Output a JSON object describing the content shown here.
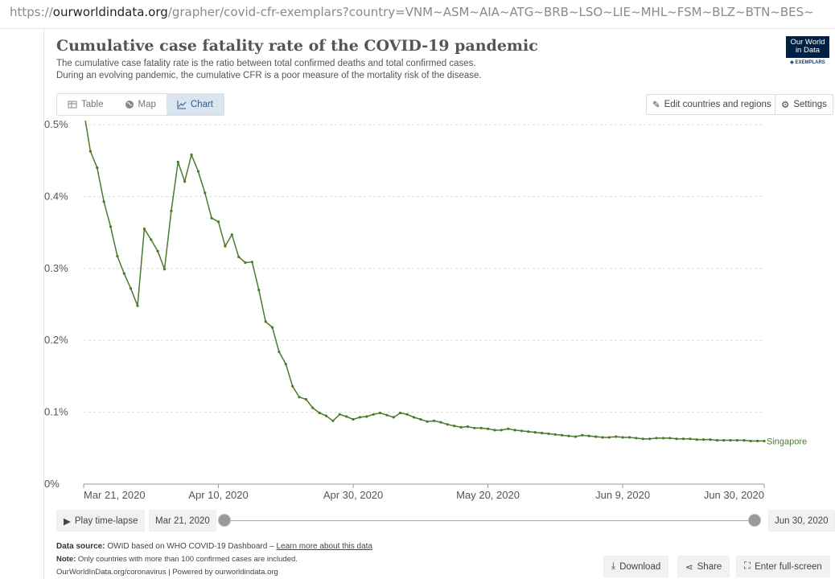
{
  "browser": {
    "url_scheme": "https://",
    "url_host": "ourworldindata.org",
    "url_path": "/grapher/covid-cfr-exemplars?country=VNM~ASM~AIA~ATG~BRB~LSO~LIE~MHL~FSM~BLZ~BTN~BES~"
  },
  "header": {
    "title": "Cumulative case fatality rate of the COVID-19 pandemic",
    "subtitle_line1": "The cumulative case fatality rate is the ratio between total confirmed deaths and total confirmed cases.",
    "subtitle_line2": "During an evolving pandemic, the cumulative CFR is a poor measure of the mortality risk of the disease.",
    "logo_line1": "Our World",
    "logo_line2": "in Data",
    "logo_sub": "EXEMPLARS"
  },
  "tabs": [
    {
      "label": "Table",
      "icon": "table-icon"
    },
    {
      "label": "Map",
      "icon": "globe-icon"
    },
    {
      "label": "Chart",
      "icon": "line-chart-icon"
    }
  ],
  "active_tab": "Chart",
  "controls": {
    "edit_label": "Edit countries and regions",
    "settings_label": "Settings",
    "play_label": "Play time-lapse",
    "start_date": "Mar 21, 2020",
    "end_date": "Jun 30, 2020",
    "download_label": "Download",
    "share_label": "Share",
    "fullscreen_label": "Enter full-screen"
  },
  "footer": {
    "source_prefix": "Data source:",
    "source_text": "OWID based on WHO COVID-19 Dashboard –",
    "source_link": "Learn more about this data",
    "note_prefix": "Note:",
    "note_text": "Only countries with more than 100 confirmed cases are included.",
    "credit": "OurWorldInData.org/coronavirus | Powered by ourworldindata.org"
  },
  "colors": {
    "series": "#4a7a2c",
    "grid": "#dddddd",
    "accent": "#2d5b8a",
    "logo_bg": "#002147"
  },
  "chart_data": {
    "type": "line",
    "title": "Cumulative case fatality rate of the COVID-19 pandemic",
    "x_start": "2020-03-21",
    "x_end": "2020-06-30",
    "x_ticks": [
      "Mar 21, 2020",
      "Apr 10, 2020",
      "Apr 30, 2020",
      "May 20, 2020",
      "Jun 9, 2020",
      "Jun 30, 2020"
    ],
    "y_ticks": [
      "0%",
      "0.1%",
      "0.2%",
      "0.3%",
      "0.4%",
      "0.5%"
    ],
    "ylim": [
      0,
      0.5
    ],
    "grid": true,
    "series": [
      {
        "name": "Singapore",
        "color": "#4a7a2c",
        "values": [
          0.52,
          0.463,
          0.44,
          0.393,
          0.358,
          0.317,
          0.293,
          0.272,
          0.248,
          0.355,
          0.34,
          0.324,
          0.299,
          0.38,
          0.448,
          0.421,
          0.458,
          0.435,
          0.405,
          0.37,
          0.365,
          0.331,
          0.347,
          0.316,
          0.308,
          0.309,
          0.27,
          0.226,
          0.218,
          0.184,
          0.167,
          0.136,
          0.121,
          0.118,
          0.106,
          0.099,
          0.095,
          0.088,
          0.097,
          0.094,
          0.09,
          0.093,
          0.094,
          0.097,
          0.099,
          0.096,
          0.093,
          0.099,
          0.097,
          0.093,
          0.09,
          0.087,
          0.088,
          0.086,
          0.083,
          0.081,
          0.079,
          0.08,
          0.078,
          0.078,
          0.077,
          0.075,
          0.075,
          0.077,
          0.075,
          0.074,
          0.073,
          0.072,
          0.071,
          0.07,
          0.069,
          0.068,
          0.067,
          0.066,
          0.068,
          0.067,
          0.066,
          0.065,
          0.065,
          0.066,
          0.065,
          0.065,
          0.064,
          0.063,
          0.063,
          0.064,
          0.064,
          0.064,
          0.063,
          0.063,
          0.063,
          0.062,
          0.062,
          0.062,
          0.061,
          0.061,
          0.061,
          0.061,
          0.061,
          0.06,
          0.06,
          0.06
        ]
      }
    ]
  }
}
